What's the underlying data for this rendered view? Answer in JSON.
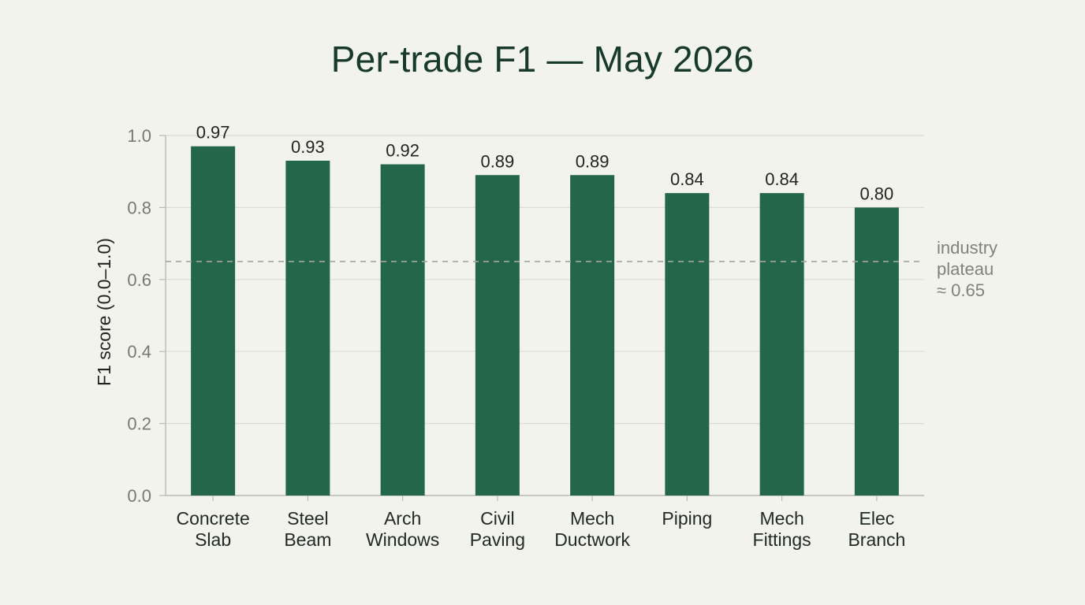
{
  "chart_data": {
    "type": "bar",
    "title": "Per-trade F1 — May 2026",
    "xlabel": "",
    "ylabel": "F1 score (0.0–1.0)",
    "ylim": [
      0,
      1.0
    ],
    "yticks": [
      "0.0",
      "0.2",
      "0.4",
      "0.6",
      "0.8",
      "1.0"
    ],
    "grid": true,
    "categories": [
      [
        "Concrete",
        "Slab"
      ],
      [
        "Steel",
        "Beam"
      ],
      [
        "Arch",
        "Windows"
      ],
      [
        "Civil",
        "Paving"
      ],
      [
        "Mech",
        "Ductwork"
      ],
      [
        "Piping"
      ],
      [
        "Mech",
        "Fittings"
      ],
      [
        "Elec",
        "Branch"
      ]
    ],
    "values": [
      0.97,
      0.93,
      0.92,
      0.89,
      0.89,
      0.84,
      0.84,
      0.8
    ],
    "value_labels": [
      "0.97",
      "0.93",
      "0.92",
      "0.89",
      "0.89",
      "0.84",
      "0.84",
      "0.80"
    ],
    "bar_color": "#236649",
    "reference_line": {
      "value": 0.65,
      "label": [
        "industry",
        "plateau",
        "≈ 0.65"
      ],
      "style": "dashed",
      "color": "#a3a59f"
    }
  }
}
